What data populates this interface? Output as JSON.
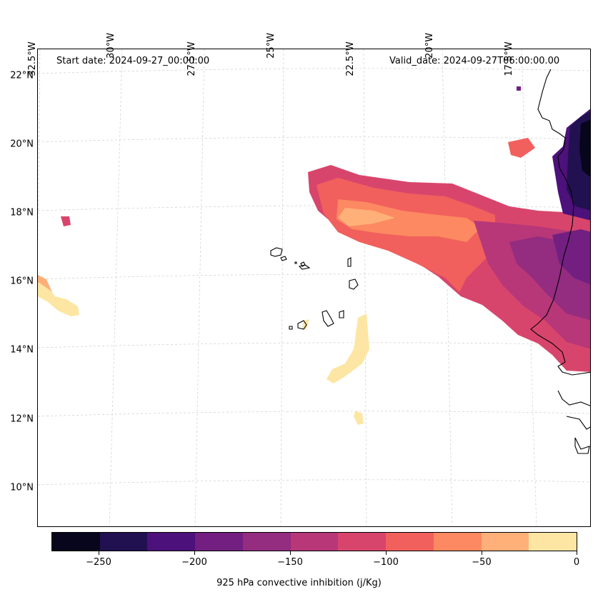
{
  "start_date": "Start date: 2024-09-27_00:00:00",
  "valid_date": "Valid_date: 2024-09-27T06:00:00.00",
  "lat_labels": [
    "22°N",
    "20°N",
    "18°N",
    "16°N",
    "14°N",
    "12°N",
    "10°N"
  ],
  "lon_labels": [
    "32.5°W",
    "30°W",
    "27.5°W",
    "25°W",
    "22.5°W",
    "20°W",
    "17.5°W"
  ],
  "colorbar": {
    "label": "925 hPa convective inhibition (j/Kg)",
    "tick_labels": [
      "−250",
      "−200",
      "−150",
      "−100",
      "−50",
      "0"
    ],
    "colors": [
      "#07061c",
      "#221150",
      "#4c117a",
      "#721f81",
      "#942c80",
      "#b73779",
      "#d8456c",
      "#f1605d",
      "#fc8961",
      "#feb078",
      "#fde6a3"
    ]
  }
}
